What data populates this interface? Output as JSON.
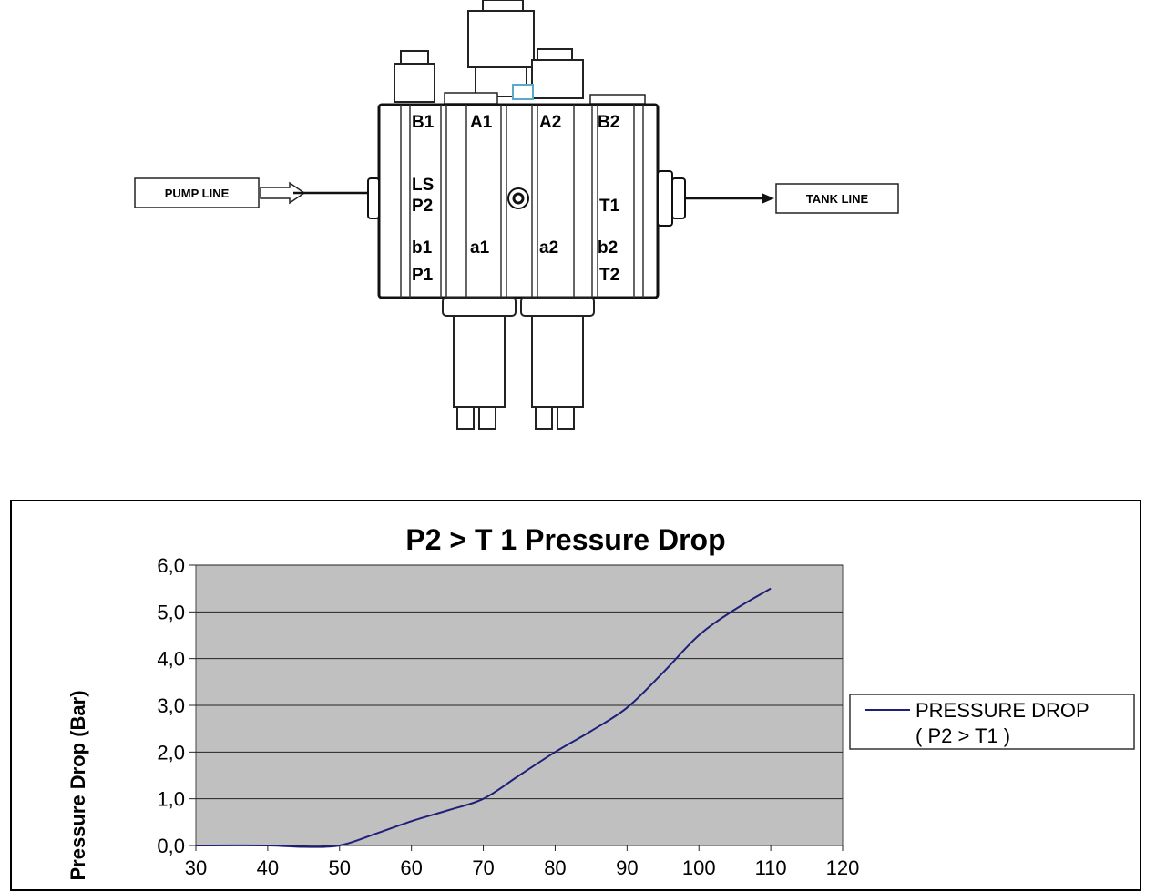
{
  "diagram": {
    "pump_label": "PUMP LINE",
    "tank_label": "TANK LINE",
    "ports": {
      "B1": "B1",
      "A1": "A1",
      "A2": "A2",
      "B2": "B2",
      "LS": "LS",
      "P2": "P2",
      "T1": "T1",
      "b1": "b1",
      "a1": "a1",
      "a2": "a2",
      "b2": "b2",
      "P1": "P1",
      "T2": "T2"
    }
  },
  "chart_data": {
    "type": "line",
    "title": "P2 > T 1 Pressure Drop",
    "ylabel": "Pressure Drop (Bar)",
    "xlabel": "",
    "x_ticks": [
      30,
      40,
      50,
      60,
      70,
      80,
      90,
      100,
      110,
      120
    ],
    "y_ticks": [
      "0,0",
      "1,0",
      "2,0",
      "3,0",
      "4,0",
      "5,0",
      "6,0"
    ],
    "xlim": [
      30,
      120
    ],
    "ylim": [
      0,
      6
    ],
    "grid": true,
    "plot_background": "#c0c0c0",
    "legend_position": "right",
    "series": [
      {
        "name": "PRESSURE DROP",
        "name_line2": "( P2 > T1 )",
        "color": "#1f1f7a",
        "x": [
          30,
          40,
          45,
          50,
          55,
          60,
          65,
          70,
          75,
          80,
          85,
          90,
          95,
          100,
          105,
          110
        ],
        "y": [
          0.0,
          0.0,
          -0.03,
          0.0,
          0.25,
          0.52,
          0.75,
          1.0,
          1.5,
          2.0,
          2.45,
          2.95,
          3.7,
          4.5,
          5.05,
          5.5
        ]
      }
    ]
  }
}
